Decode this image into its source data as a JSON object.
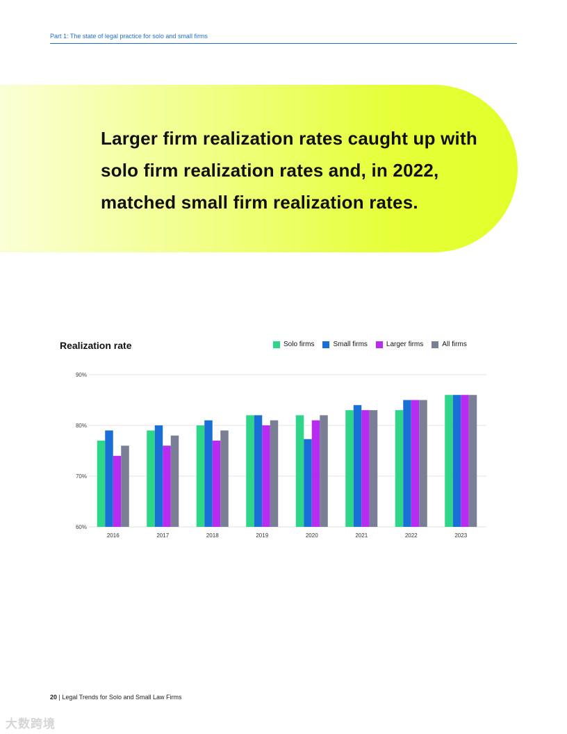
{
  "header": {
    "section_label": "Part 1: The state of legal practice for solo and small firms"
  },
  "banner": {
    "headline": "Larger firm realization rates caught up with solo firm realization rates and, in 2022, matched small firm realization rates."
  },
  "footer": {
    "page_number": "20",
    "separator": "|",
    "title": "Legal Trends for Solo and Small Law Firms"
  },
  "watermark": {
    "text": "大数跨境"
  },
  "chart_data": {
    "type": "bar",
    "title": "Realization rate",
    "categories": [
      "2016",
      "2017",
      "2018",
      "2019",
      "2020",
      "2021",
      "2022",
      "2023"
    ],
    "series": [
      {
        "name": "Solo firms",
        "color": "#2ed68a",
        "values": [
          77,
          79,
          80,
          82,
          82,
          83,
          83,
          86
        ]
      },
      {
        "name": "Small firms",
        "color": "#1a6fd6",
        "values": [
          79,
          80,
          81,
          82,
          77.3,
          84,
          85,
          86
        ]
      },
      {
        "name": "Larger firms",
        "color": "#b72cf0",
        "values": [
          74,
          76,
          77,
          80,
          81,
          83,
          85,
          86
        ]
      },
      {
        "name": "All firms",
        "color": "#7b7f95",
        "values": [
          76,
          78,
          79,
          81,
          82,
          83,
          85,
          86
        ]
      }
    ],
    "yticks": [
      "60%",
      "70%",
      "80%",
      "90%"
    ],
    "ylim": [
      60,
      90
    ],
    "grid": true,
    "legend_position": "top-right"
  }
}
